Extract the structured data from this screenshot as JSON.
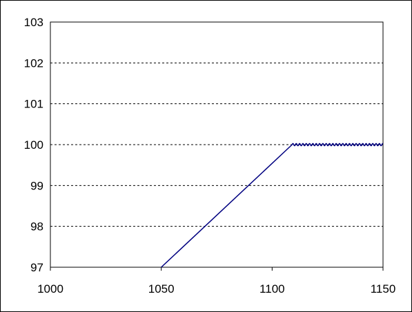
{
  "chart_data": {
    "type": "line",
    "title": "",
    "xlabel": "",
    "ylabel": "",
    "xlim": [
      1000,
      1150
    ],
    "ylim": [
      97,
      103
    ],
    "xticks": [
      1000,
      1050,
      1100,
      1150
    ],
    "yticks": [
      97,
      98,
      99,
      100,
      101,
      102,
      103
    ],
    "grid": "horizontal-dashed",
    "legend": "none",
    "colors": {
      "line": "#000080",
      "grid": "#000000",
      "frame": "#000000"
    },
    "series": [
      {
        "x": [
          1050,
          1109,
          1150
        ],
        "y": [
          97,
          100,
          100
        ],
        "ripple_after_x": 1109,
        "ripple_amplitude": 0.03
      }
    ]
  }
}
